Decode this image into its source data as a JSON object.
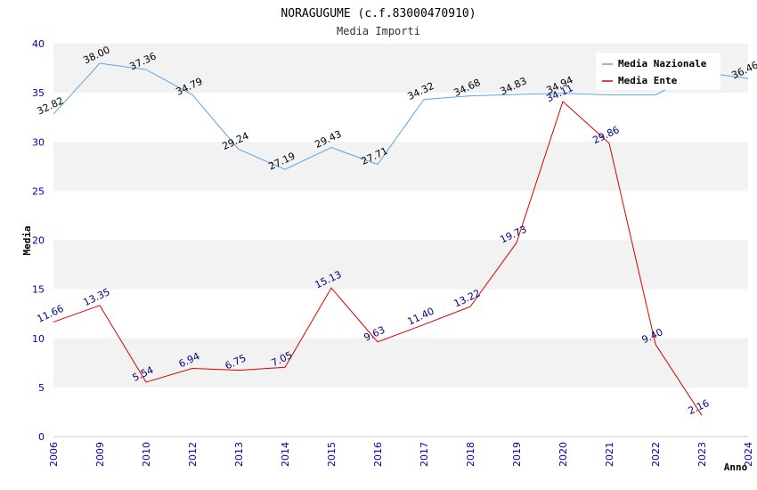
{
  "chart_data": {
    "type": "line",
    "title": "NORAGUGUME (c.f.83000470910)",
    "subtitle": "Media Importi",
    "xlabel": "Anno",
    "ylabel": "Media",
    "ylim": [
      0,
      40
    ],
    "yticks": [
      "0",
      "5",
      "10",
      "15",
      "20",
      "25",
      "30",
      "35",
      "40"
    ],
    "categories": [
      "2006",
      "2009",
      "2010",
      "2012",
      "2013",
      "2014",
      "2015",
      "2016",
      "2017",
      "2018",
      "2019",
      "2020",
      "2021",
      "2022",
      "2023",
      "2024"
    ],
    "grid": true,
    "legend_position": "top-right",
    "series": [
      {
        "name": "Media Nazionale",
        "color": "#5aa5e6",
        "values": [
          32.82,
          38.0,
          37.36,
          34.79,
          29.24,
          27.19,
          29.43,
          27.71,
          34.32,
          34.68,
          34.83,
          34.94,
          34.8,
          34.8,
          37.1,
          36.46
        ],
        "labels": [
          "32.82",
          "38.00",
          "37.36",
          "34.79",
          "29.24",
          "27.19",
          "29.43",
          "27.71",
          "34.32",
          "34.68",
          "34.83",
          "34.94",
          "",
          "",
          "",
          "36.46"
        ]
      },
      {
        "name": "Media Ente",
        "color": "#dd0000",
        "values": [
          11.66,
          13.35,
          5.54,
          6.94,
          6.75,
          7.05,
          15.13,
          9.63,
          11.4,
          13.22,
          19.73,
          34.11,
          29.86,
          9.4,
          2.16,
          null
        ],
        "labels": [
          "11.66",
          "13.35",
          "5.54",
          "6.94",
          "6.75",
          "7.05",
          "15.13",
          "9.63",
          "11.40",
          "13.22",
          "19.73",
          "34.11",
          "29.86",
          "9.40",
          "2.16",
          ""
        ]
      }
    ]
  }
}
